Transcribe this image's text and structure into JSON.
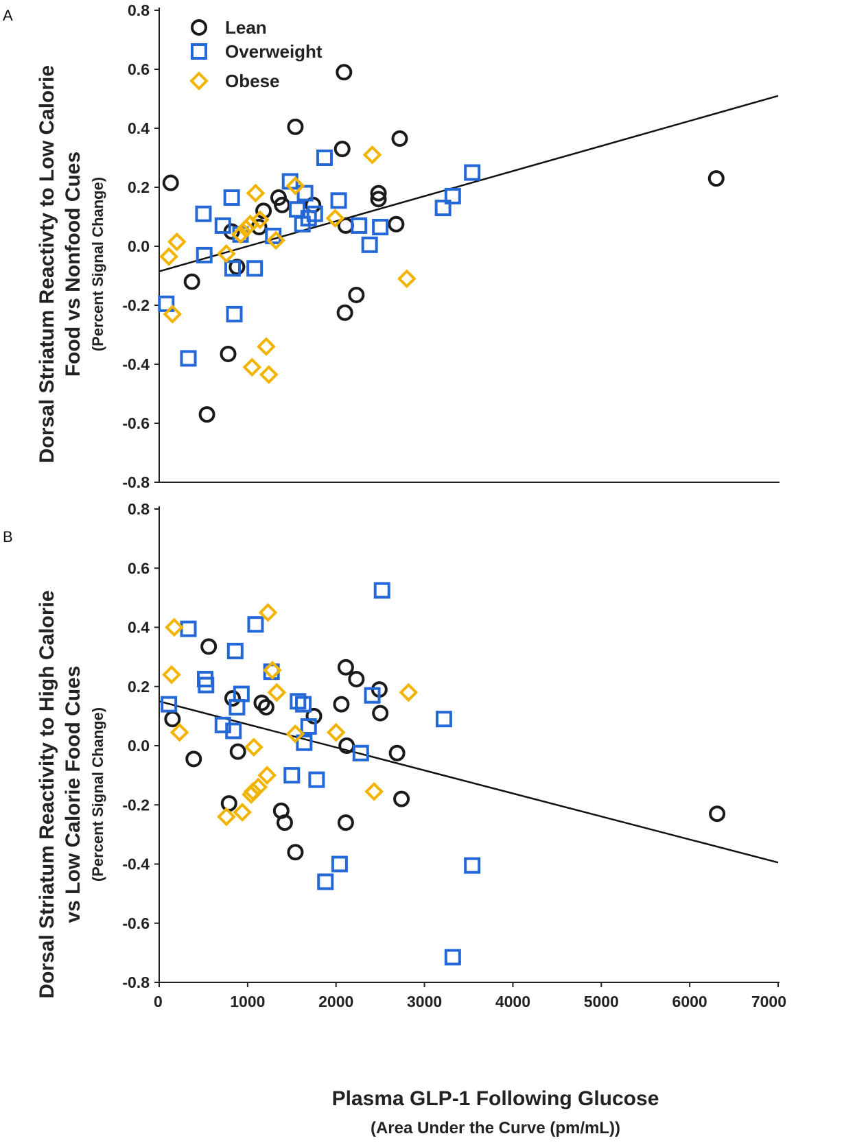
{
  "colors": {
    "lean": "#1a1a1a",
    "overweight": "#2467d6",
    "obese": "#f2b400",
    "axis": "#222222",
    "fit_line": "#111111"
  },
  "chart_data": [
    {
      "type": "scatter",
      "panel_label": "A",
      "ylabel_lines": [
        "Dorsal Striatum Reactivty to Low Calorie",
        "Food vs Nonfood Cues",
        "(Percent Signal Change)"
      ],
      "xlabel": "",
      "xlim": [
        0,
        7000
      ],
      "ylim": [
        -0.8,
        0.8
      ],
      "yticks": [
        "0.8",
        "0.6",
        "0.4",
        "0.2",
        "0.0",
        "-0.2",
        "-0.4",
        "-0.6",
        "-0.8"
      ],
      "legend": {
        "position": "top-left",
        "entries": [
          {
            "name": "Lean",
            "marker": "circle"
          },
          {
            "name": "Overweight",
            "marker": "square"
          },
          {
            "name": "Obese",
            "marker": "diamond"
          }
        ]
      },
      "fit_line": {
        "x": [
          0,
          7000
        ],
        "y": [
          -0.085,
          0.51
        ]
      },
      "series": [
        {
          "name": "Lean",
          "marker": "circle",
          "points": [
            [
              130,
              0.215
            ],
            [
              370,
              -0.12
            ],
            [
              540,
              -0.57
            ],
            [
              780,
              -0.365
            ],
            [
              820,
              0.05
            ],
            [
              880,
              -0.07
            ],
            [
              1130,
              0.065
            ],
            [
              1180,
              0.12
            ],
            [
              1350,
              0.165
            ],
            [
              1390,
              0.14
            ],
            [
              1540,
              0.405
            ],
            [
              1740,
              0.14
            ],
            [
              2070,
              0.33
            ],
            [
              2090,
              0.59
            ],
            [
              2100,
              -0.225
            ],
            [
              2110,
              0.07
            ],
            [
              2230,
              -0.165
            ],
            [
              2480,
              0.18
            ],
            [
              2480,
              0.16
            ],
            [
              2680,
              0.075
            ],
            [
              2720,
              0.365
            ],
            [
              6300,
              0.23
            ]
          ]
        },
        {
          "name": "Overweight",
          "marker": "square",
          "points": [
            [
              80,
              -0.195
            ],
            [
              330,
              -0.38
            ],
            [
              500,
              0.11
            ],
            [
              510,
              -0.03
            ],
            [
              720,
              0.07
            ],
            [
              820,
              0.165
            ],
            [
              830,
              -0.075
            ],
            [
              850,
              -0.23
            ],
            [
              920,
              0.04
            ],
            [
              1080,
              -0.075
            ],
            [
              1290,
              0.035
            ],
            [
              1480,
              0.22
            ],
            [
              1560,
              0.125
            ],
            [
              1620,
              0.075
            ],
            [
              1650,
              0.18
            ],
            [
              1690,
              0.095
            ],
            [
              1760,
              0.11
            ],
            [
              1870,
              0.3
            ],
            [
              2030,
              0.155
            ],
            [
              2260,
              0.07
            ],
            [
              2380,
              0.005
            ],
            [
              2500,
              0.065
            ],
            [
              3210,
              0.13
            ],
            [
              3320,
              0.17
            ],
            [
              3540,
              0.25
            ]
          ]
        },
        {
          "name": "Obese",
          "marker": "diamond",
          "points": [
            [
              110,
              -0.035
            ],
            [
              150,
              -0.23
            ],
            [
              200,
              0.015
            ],
            [
              760,
              -0.025
            ],
            [
              920,
              0.04
            ],
            [
              980,
              0.06
            ],
            [
              1030,
              0.075
            ],
            [
              1050,
              -0.41
            ],
            [
              1090,
              0.18
            ],
            [
              1140,
              0.09
            ],
            [
              1210,
              -0.34
            ],
            [
              1240,
              -0.435
            ],
            [
              1320,
              0.02
            ],
            [
              1540,
              0.205
            ],
            [
              1990,
              0.095
            ],
            [
              2410,
              0.31
            ],
            [
              2800,
              -0.11
            ]
          ]
        }
      ]
    },
    {
      "type": "scatter",
      "panel_label": "B",
      "ylabel_lines": [
        "Dorsal Striatum Reactivity to High Calorie",
        "vs Low Calorie Food Cues",
        "(Percent Signal Change)"
      ],
      "xlabel_lines": [
        "Plasma GLP-1 Following Glucose",
        "(Area Under the Curve (pm/mL))"
      ],
      "xlim": [
        0,
        7000
      ],
      "ylim": [
        -0.8,
        0.8
      ],
      "xticks": [
        "0",
        "1000",
        "2000",
        "3000",
        "4000",
        "5000",
        "6000",
        "7000"
      ],
      "yticks": [
        "0.8",
        "0.6",
        "0.4",
        "0.2",
        "0.0",
        "-0.2",
        "-0.4",
        "-0.6",
        "-0.8"
      ],
      "fit_line": {
        "x": [
          0,
          7000
        ],
        "y": [
          0.15,
          -0.395
        ]
      },
      "series": [
        {
          "name": "Lean",
          "marker": "circle",
          "points": [
            [
              150,
              0.09
            ],
            [
              390,
              -0.045
            ],
            [
              560,
              0.335
            ],
            [
              790,
              -0.195
            ],
            [
              830,
              0.16
            ],
            [
              890,
              -0.02
            ],
            [
              1160,
              0.145
            ],
            [
              1210,
              0.13
            ],
            [
              1380,
              -0.22
            ],
            [
              1420,
              -0.26
            ],
            [
              1540,
              -0.36
            ],
            [
              1750,
              0.1
            ],
            [
              2060,
              0.14
            ],
            [
              2110,
              0.265
            ],
            [
              2120,
              0.0
            ],
            [
              2110,
              -0.26
            ],
            [
              2230,
              0.225
            ],
            [
              2490,
              0.19
            ],
            [
              2500,
              0.11
            ],
            [
              2690,
              -0.025
            ],
            [
              2740,
              -0.18
            ],
            [
              6310,
              -0.23
            ]
          ]
        },
        {
          "name": "Overweight",
          "marker": "square",
          "points": [
            [
              110,
              0.14
            ],
            [
              330,
              0.395
            ],
            [
              520,
              0.225
            ],
            [
              530,
              0.205
            ],
            [
              720,
              0.07
            ],
            [
              840,
              0.05
            ],
            [
              860,
              0.32
            ],
            [
              880,
              0.13
            ],
            [
              930,
              0.175
            ],
            [
              1090,
              0.41
            ],
            [
              1270,
              0.25
            ],
            [
              1500,
              -0.1
            ],
            [
              1570,
              0.15
            ],
            [
              1630,
              0.14
            ],
            [
              1640,
              0.01
            ],
            [
              1690,
              0.065
            ],
            [
              1780,
              -0.115
            ],
            [
              1880,
              -0.46
            ],
            [
              2040,
              -0.4
            ],
            [
              2280,
              -0.025
            ],
            [
              2410,
              0.17
            ],
            [
              2520,
              0.525
            ],
            [
              3220,
              0.09
            ],
            [
              3320,
              -0.715
            ],
            [
              3540,
              -0.405
            ]
          ]
        },
        {
          "name": "Obese",
          "marker": "diamond",
          "points": [
            [
              140,
              0.24
            ],
            [
              170,
              0.4
            ],
            [
              230,
              0.045
            ],
            [
              760,
              -0.24
            ],
            [
              940,
              -0.225
            ],
            [
              1040,
              -0.165
            ],
            [
              1060,
              -0.155
            ],
            [
              1070,
              -0.005
            ],
            [
              1120,
              -0.14
            ],
            [
              1220,
              -0.1
            ],
            [
              1230,
              0.45
            ],
            [
              1280,
              0.255
            ],
            [
              1330,
              0.18
            ],
            [
              1540,
              0.04
            ],
            [
              2000,
              0.045
            ],
            [
              2430,
              -0.155
            ],
            [
              2820,
              0.18
            ]
          ]
        }
      ]
    }
  ]
}
